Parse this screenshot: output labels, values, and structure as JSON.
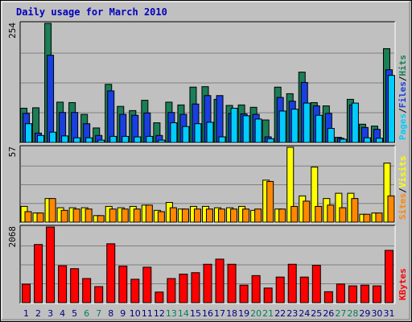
{
  "chart_data": {
    "type": "bar",
    "title": "Daily usage for March 2010",
    "categories": [
      "1",
      "2",
      "3",
      "4",
      "5",
      "6",
      "7",
      "8",
      "9",
      "10",
      "11",
      "12",
      "13",
      "14",
      "15",
      "16",
      "17",
      "18",
      "19",
      "20",
      "21",
      "22",
      "23",
      "24",
      "25",
      "26",
      "27",
      "28",
      "29",
      "30",
      "31"
    ],
    "weekend_days": [
      "6",
      "7",
      "13",
      "14",
      "20",
      "21",
      "27",
      "28"
    ],
    "panels": [
      {
        "name": "top",
        "ymax": 254,
        "ymax_label": "254",
        "legend": [
          "Pages",
          "/",
          "Files",
          "/",
          "Hits"
        ],
        "series": [
          {
            "name": "Hits",
            "color": "#1a7e56",
            "values": [
              73,
              74,
              254,
              86,
              85,
              60,
              31,
              124,
              77,
              68,
              90,
              42,
              86,
              80,
              118,
              119,
              92,
              79,
              80,
              75,
              48,
              118,
              104,
              150,
              85,
              78,
              11,
              92,
              39,
              35,
              200
            ]
          },
          {
            "name": "Files",
            "color": "#1a3fe0",
            "values": [
              62,
              20,
              186,
              64,
              64,
              40,
              15,
              110,
              60,
              58,
              63,
              15,
              64,
              60,
              82,
              100,
              100,
              62,
              61,
              60,
              12,
              96,
              88,
              128,
              78,
              62,
              9,
              80,
              32,
              28,
              155
            ]
          },
          {
            "name": "Pages",
            "color": "#00ccff",
            "values": [
              40,
              15,
              22,
              14,
              10,
              10,
              5,
              13,
              13,
              12,
              13,
              5,
              42,
              34,
              40,
              43,
              12,
              73,
              57,
              50,
              8,
              67,
              71,
              84,
              58,
              30,
              7,
              84,
              10,
              9,
              143
            ]
          }
        ]
      },
      {
        "name": "middle",
        "ymax": 57,
        "ymax_label": "57",
        "legend": [
          "Sites",
          "/",
          "Visits"
        ],
        "series": [
          {
            "name": "Visits",
            "color": "#ffff00",
            "values": [
              12,
              7,
              18,
              11,
              11,
              11,
              5,
              12,
              11,
              12,
              13,
              9,
              15,
              10,
              12,
              12,
              11,
              11,
              12,
              9,
              32,
              10,
              57,
              20,
              42,
              18,
              22,
              22,
              6,
              7,
              45
            ]
          },
          {
            "name": "Sites",
            "color": "#ff8800",
            "values": [
              8,
              7,
              18,
              9,
              10,
              10,
              5,
              10,
              10,
              10,
              13,
              8,
              11,
              10,
              10,
              10,
              10,
              10,
              10,
              10,
              31,
              10,
              12,
              16,
              12,
              13,
              11,
              18,
              6,
              7,
              20
            ]
          }
        ]
      },
      {
        "name": "bottom",
        "ymax": 2068,
        "ymax_label": "2068",
        "legend": [
          "KBytes"
        ],
        "series": [
          {
            "name": "KBytes",
            "color": "#ff0000",
            "values": [
              505,
              1590,
              2068,
              1010,
              930,
              660,
              440,
              1610,
              1000,
              640,
              970,
              290,
              660,
              780,
              820,
              1050,
              1190,
              1050,
              480,
              740,
              400,
              700,
              1050,
              700,
              1020,
              300,
              510,
              460,
              480,
              460,
              1430
            ]
          }
        ]
      }
    ]
  },
  "colors": {
    "frame": "#c0c0c0",
    "plot_bg": "#c0c0c0",
    "title": "#0000bb",
    "weekday_label": "#000080",
    "weekend_label": "#00805a",
    "gridline": "#808080"
  }
}
